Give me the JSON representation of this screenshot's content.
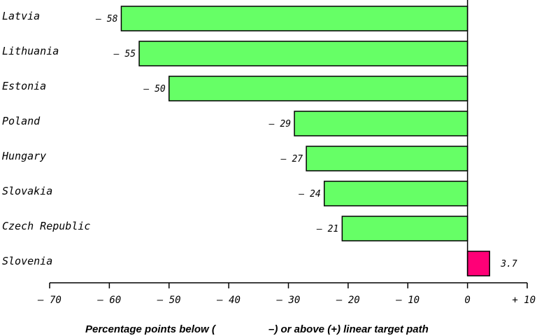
{
  "chart_data": {
    "type": "bar",
    "orientation": "horizontal",
    "categories": [
      "Latvia",
      "Lithuania",
      "Estonia",
      "Poland",
      "Hungary",
      "Slovakia",
      "Czech Republic",
      "Slovenia"
    ],
    "values": [
      -58,
      -55,
      -50,
      -29,
      -27,
      -24,
      -21,
      3.7
    ],
    "value_labels": [
      "– 58",
      "– 55",
      "– 50",
      "– 29",
      "– 27",
      "– 24",
      "– 21",
      "3.7"
    ],
    "xlim": [
      -70,
      10
    ],
    "xticks": [
      -70,
      -60,
      -50,
      -40,
      -30,
      -20,
      -10,
      0,
      10
    ],
    "xtick_labels": [
      "– 70",
      "– 60",
      "– 50",
      "– 40",
      "– 30",
      "– 20",
      "– 10",
      "0",
      "+ 10"
    ],
    "xlabel_parts": [
      "Percentage points below (",
      "–) or above (+) linear target path"
    ],
    "title": "",
    "ylabel": "",
    "grid": false,
    "colors": {
      "negative": "#66ff66",
      "positive": "#ff0077",
      "outline": "#000000"
    }
  }
}
